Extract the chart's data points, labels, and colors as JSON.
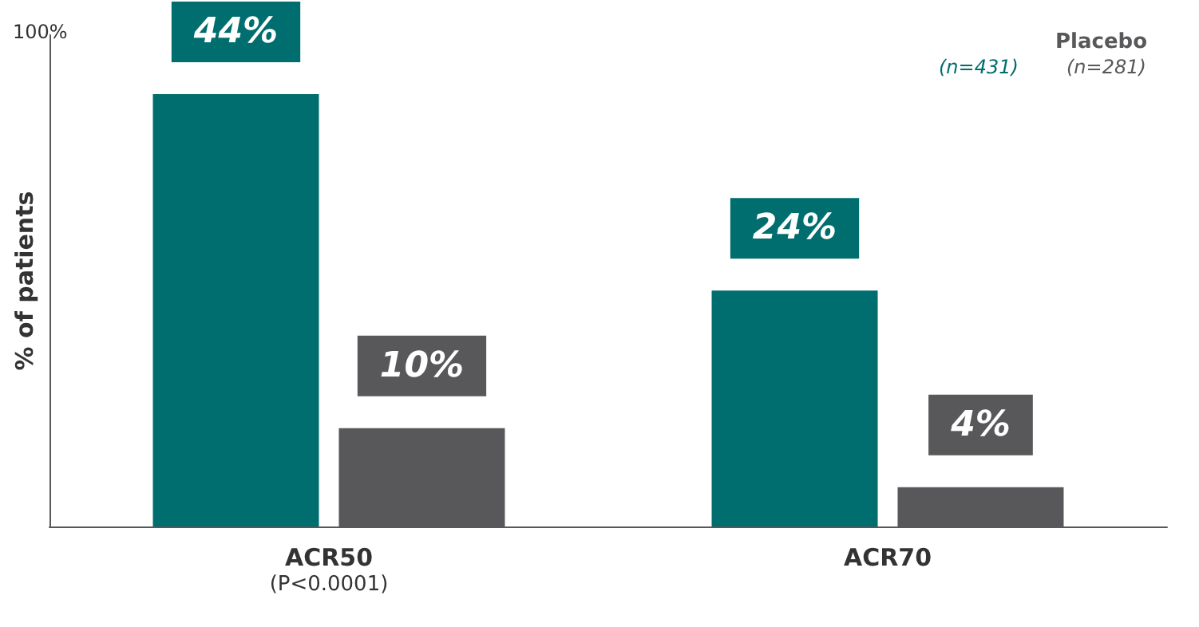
{
  "chart_data": {
    "type": "bar",
    "ylabel": "% of patients",
    "categories": [
      "ACR50",
      "ACR70"
    ],
    "series": [
      {
        "color": "#006d6f",
        "values": [
          44,
          24
        ],
        "value_labels": [
          "44%",
          "24%"
        ]
      },
      {
        "name": "Placebo",
        "color": "#58585a",
        "values": [
          10,
          4
        ],
        "value_labels": [
          "10%",
          "4%"
        ]
      }
    ],
    "annotations": [
      "100%",
      "(n=431)",
      "(n=281)",
      "(P<0.0001)"
    ],
    "legend": "top right",
    "grid": false
  }
}
